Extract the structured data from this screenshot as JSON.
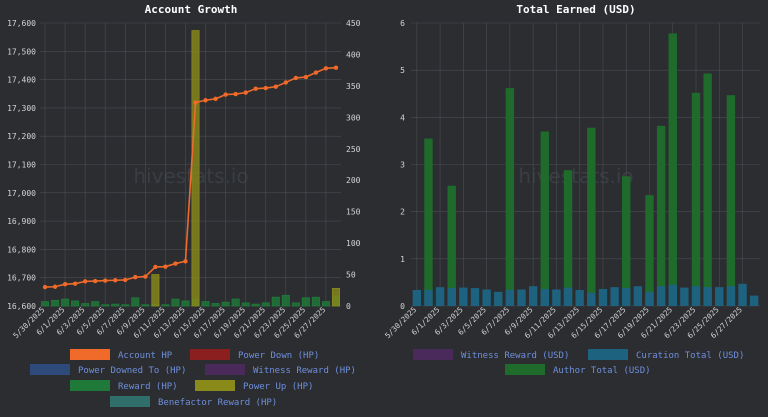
{
  "watermark": "hivestats.io",
  "colors": {
    "background": "#2b2d31",
    "account_hp": "#f06a2a",
    "power_down": "#8b1e1e",
    "power_downed_to": "#2e4a7a",
    "witness_reward": "#4a2a5a",
    "reward": "#1f7a3a",
    "power_up": "#8a8a1a",
    "benefactor_reward": "#2f6e6a",
    "curation_total": "#1d6380",
    "author_total": "#1f6b2c",
    "legend_text": "#6f8fdc"
  },
  "chart_data": [
    {
      "type": "bar+line",
      "title": "Account Growth",
      "x_dates": [
        "5/30/2025",
        "5/31/2025",
        "6/1/2025",
        "6/2/2025",
        "6/3/2025",
        "6/4/2025",
        "6/5/2025",
        "6/6/2025",
        "6/7/2025",
        "6/8/2025",
        "6/9/2025",
        "6/10/2025",
        "6/11/2025",
        "6/12/2025",
        "6/13/2025",
        "6/14/2025",
        "6/15/2025",
        "6/16/2025",
        "6/17/2025",
        "6/18/2025",
        "6/19/2025",
        "6/20/2025",
        "6/21/2025",
        "6/22/2025",
        "6/23/2025",
        "6/24/2025",
        "6/25/2025",
        "6/26/2025",
        "6/27/2025",
        "6/28/2025"
      ],
      "x_tick_labels": [
        "5/30/2025",
        "6/1/2025",
        "6/3/2025",
        "6/5/2025",
        "6/7/2025",
        "6/9/2025",
        "6/11/2025",
        "6/13/2025",
        "6/15/2025",
        "6/17/2025",
        "6/19/2025",
        "6/21/2025",
        "6/23/2025",
        "6/25/2025",
        "6/27/2025"
      ],
      "left_axis": {
        "min": 16600,
        "max": 17600,
        "ticks": [
          "16,600",
          "16,700",
          "16,800",
          "16,900",
          "17,000",
          "17,100",
          "17,200",
          "17,300",
          "17,400",
          "17,500",
          "17,600"
        ]
      },
      "right_axis": {
        "min": 0,
        "max": 450,
        "ticks": [
          "0",
          "50",
          "100",
          "150",
          "200",
          "250",
          "300",
          "350",
          "400",
          "450"
        ]
      },
      "series": [
        {
          "name": "Account HP",
          "axis": "left",
          "kind": "line",
          "values": [
            16667,
            16668,
            16677,
            16679,
            16687,
            16688,
            16690,
            16691,
            16692,
            16702,
            16704,
            16738,
            16739,
            16750,
            16758,
            17319,
            17327,
            17332,
            17347,
            17349,
            17354,
            17368,
            17370,
            17375,
            17390,
            17406,
            17409,
            17425,
            17440,
            17442
          ]
        },
        {
          "name": "Reward (HP)",
          "axis": "right",
          "kind": "bar",
          "values": [
            7,
            9,
            11,
            8,
            4,
            7,
            2,
            3,
            2,
            13,
            2,
            2,
            2,
            11,
            8,
            11,
            7,
            4,
            6,
            11,
            5,
            3,
            5,
            14,
            17,
            5,
            13,
            14,
            7,
            16
          ]
        },
        {
          "name": "Power Up (HP)",
          "axis": "right",
          "kind": "bar",
          "values": [
            0,
            0,
            0,
            0,
            0,
            0,
            0,
            0,
            0,
            0,
            0,
            50,
            0,
            0,
            0,
            438,
            0,
            0,
            0,
            0,
            0,
            0,
            0,
            0,
            0,
            0,
            0,
            0,
            0,
            28
          ]
        }
      ],
      "legend": [
        "Account HP",
        "Power Down (HP)",
        "Power Downed To (HP)",
        "Witness Reward (HP)",
        "Reward (HP)",
        "Power Up (HP)",
        "Benefactor Reward (HP)"
      ]
    },
    {
      "type": "bar",
      "title": "Total Earned (USD)",
      "x_dates": [
        "5/30/2025",
        "5/31/2025",
        "6/1/2025",
        "6/2/2025",
        "6/3/2025",
        "6/4/2025",
        "6/5/2025",
        "6/6/2025",
        "6/7/2025",
        "6/8/2025",
        "6/9/2025",
        "6/10/2025",
        "6/11/2025",
        "6/12/2025",
        "6/13/2025",
        "6/14/2025",
        "6/15/2025",
        "6/16/2025",
        "6/17/2025",
        "6/18/2025",
        "6/19/2025",
        "6/20/2025",
        "6/21/2025",
        "6/22/2025",
        "6/23/2025",
        "6/24/2025",
        "6/25/2025",
        "6/26/2025",
        "6/27/2025",
        "6/28/2025"
      ],
      "x_tick_labels": [
        "5/30/2025",
        "6/1/2025",
        "6/3/2025",
        "6/5/2025",
        "6/7/2025",
        "6/9/2025",
        "6/11/2025",
        "6/13/2025",
        "6/15/2025",
        "6/17/2025",
        "6/19/2025",
        "6/21/2025",
        "6/23/2025",
        "6/25/2025",
        "6/27/2025"
      ],
      "y_axis": {
        "min": 0,
        "max": 6,
        "ticks": [
          "0",
          "1",
          "2",
          "3",
          "4",
          "5",
          "6"
        ]
      },
      "series": [
        {
          "name": "Curation Total (USD)",
          "kind": "bar",
          "values": [
            0.34,
            0.34,
            0.4,
            0.38,
            0.39,
            0.38,
            0.35,
            0.3,
            0.34,
            0.35,
            0.42,
            0.36,
            0.35,
            0.39,
            0.34,
            0.28,
            0.36,
            0.4,
            0.38,
            0.42,
            0.3,
            0.42,
            0.45,
            0.39,
            0.42,
            0.4,
            0.4,
            0.42,
            0.47,
            0.22
          ]
        },
        {
          "name": "Author Total (USD)",
          "kind": "bar",
          "values": [
            0,
            3.55,
            0,
            2.55,
            0,
            0,
            0,
            0,
            4.62,
            0,
            0,
            3.7,
            0,
            2.88,
            0,
            3.78,
            0,
            0,
            2.75,
            0,
            2.35,
            3.82,
            5.78,
            0,
            4.52,
            4.93,
            0,
            4.47,
            0,
            0
          ]
        }
      ],
      "legend": [
        "Witness Reward (USD)",
        "Curation Total (USD)",
        "Author Total (USD)"
      ]
    }
  ]
}
